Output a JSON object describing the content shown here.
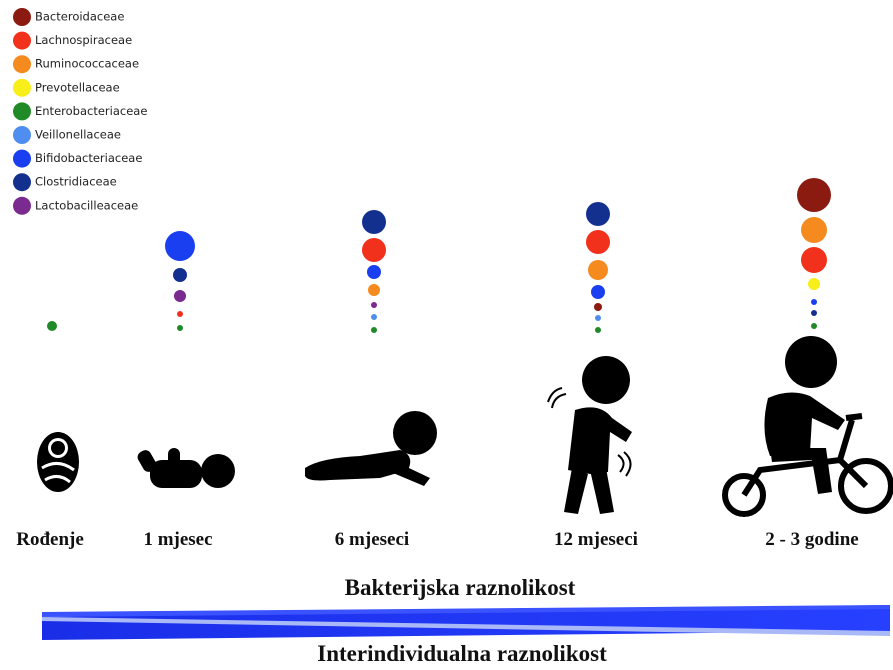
{
  "legend": [
    {
      "label": "Bacteroidaceae",
      "color": "#8b1a10"
    },
    {
      "label": "Lachnospiraceae",
      "color": "#f2311c"
    },
    {
      "label": "Ruminococcaceae",
      "color": "#f58a1f"
    },
    {
      "label": "Prevotellaceae",
      "color": "#f7ee1a"
    },
    {
      "label": "Enterobacteriaceae",
      "color": "#1f8a26"
    },
    {
      "label": "Veillonellaceae",
      "color": "#4f8ef0"
    },
    {
      "label": "Bifidobacteriaceae",
      "color": "#1a3ff0"
    },
    {
      "label": "Clostridiaceae",
      "color": "#13308f"
    },
    {
      "label": "Lactobacilleaceae",
      "color": "#7b2a8f"
    }
  ],
  "stages": [
    "Rođenje",
    "1 mjesec",
    "6 mjeseci",
    "12 mjeseci",
    "2 - 3 godine"
  ],
  "bacterial_diversity": "Bakterijska raznolikost",
  "interindividual_diversity": "Interindividualna raznolikost"
}
